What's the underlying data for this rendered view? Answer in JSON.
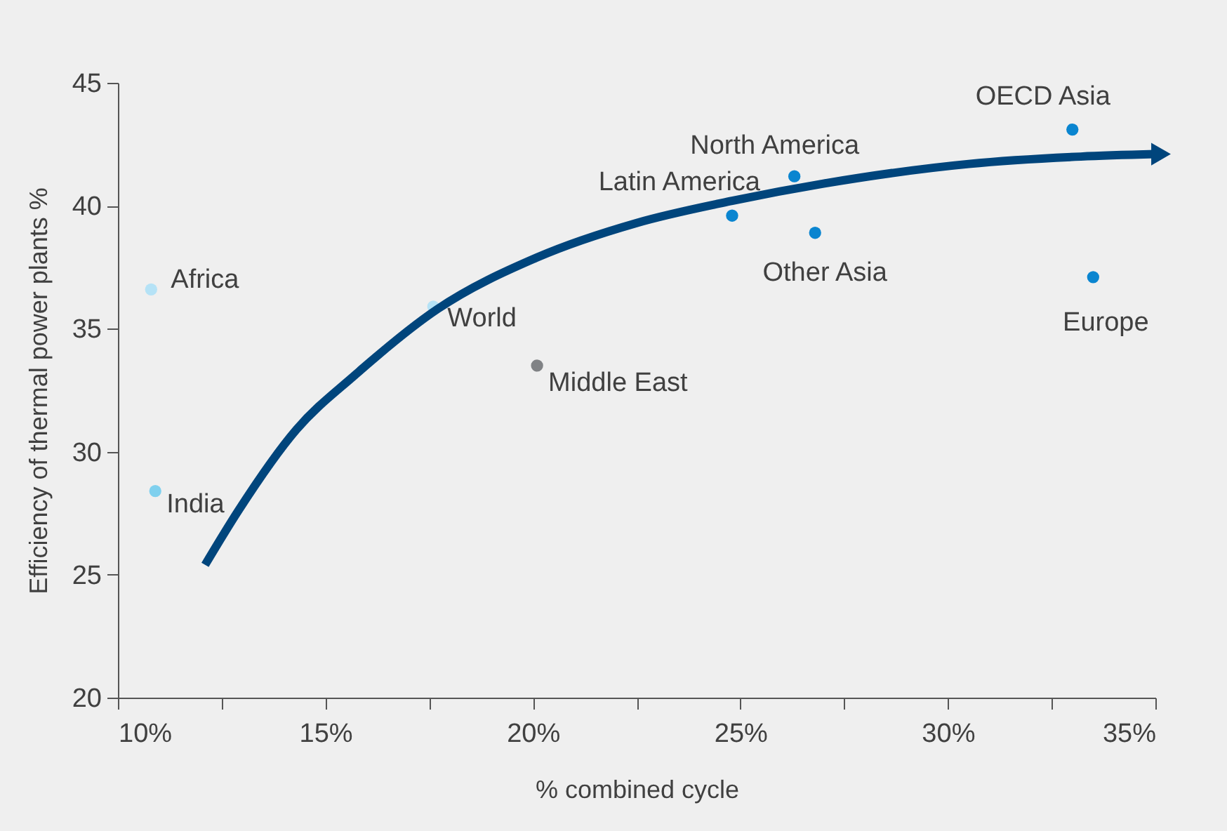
{
  "chart_data": {
    "type": "scatter",
    "xlabel": "% combined cycle",
    "ylabel": "Efficiency of thermal power plants %",
    "xlim": [
      10,
      35
    ],
    "ylim": [
      20,
      45
    ],
    "xticks": [
      {
        "value": 10,
        "label": "10%"
      },
      {
        "value": 12.5,
        "label": null
      },
      {
        "value": 15,
        "label": "15%"
      },
      {
        "value": 17.5,
        "label": null
      },
      {
        "value": 20,
        "label": "20%"
      },
      {
        "value": 22.5,
        "label": null
      },
      {
        "value": 25,
        "label": "25%"
      },
      {
        "value": 27.5,
        "label": null
      },
      {
        "value": 30,
        "label": "30%"
      },
      {
        "value": 32.5,
        "label": null
      },
      {
        "value": 35,
        "label": "35%"
      }
    ],
    "yticks": [
      20,
      25,
      30,
      35,
      40,
      45
    ],
    "grid": false,
    "series": [
      {
        "marker": "circle",
        "x": [
          10.8,
          10.9,
          17.6,
          20.1,
          24.8,
          26.3,
          26.8,
          33.0,
          33.5
        ],
        "values": [
          36.6,
          28.4,
          35.9,
          33.5,
          39.6,
          41.2,
          38.9,
          43.1,
          37.1
        ],
        "colors": [
          "#b5e2f6",
          "#7fd0ee",
          "#b5e2f6",
          "#808285",
          "#0a85d0",
          "#0a85d0",
          "#0a85d0",
          "#0a85d0",
          "#0a85d0"
        ]
      },
      {
        "type": "line",
        "color": "#00457c",
        "marker": "none",
        "line_style": "solid",
        "x": [
          12.1,
          12.9,
          14.3,
          15.7,
          17.7,
          20.1,
          22.5,
          24.8,
          27.0,
          30.5,
          33.2,
          35.0
        ],
        "values": [
          25.4,
          27.6,
          30.9,
          33.1,
          35.8,
          37.9,
          39.3,
          40.2,
          40.9,
          41.7,
          42.0,
          42.1
        ]
      }
    ],
    "annotations": [
      {
        "text": "Africa",
        "x": 10.8,
        "y": 36.6
      },
      {
        "text": "India",
        "x": 10.9,
        "y": 28.4
      },
      {
        "text": "World",
        "x": 17.6,
        "y": 35.9
      },
      {
        "text": "Middle East",
        "x": 20.1,
        "y": 33.5
      },
      {
        "text": "Latin America",
        "x": 24.8,
        "y": 39.6
      },
      {
        "text": "North America",
        "x": 26.3,
        "y": 41.2
      },
      {
        "text": "Other Asia",
        "x": 26.8,
        "y": 38.9
      },
      {
        "text": "OECD Asia",
        "x": 33.0,
        "y": 43.1
      },
      {
        "text": "Europe",
        "x": 33.5,
        "y": 37.1
      }
    ]
  }
}
